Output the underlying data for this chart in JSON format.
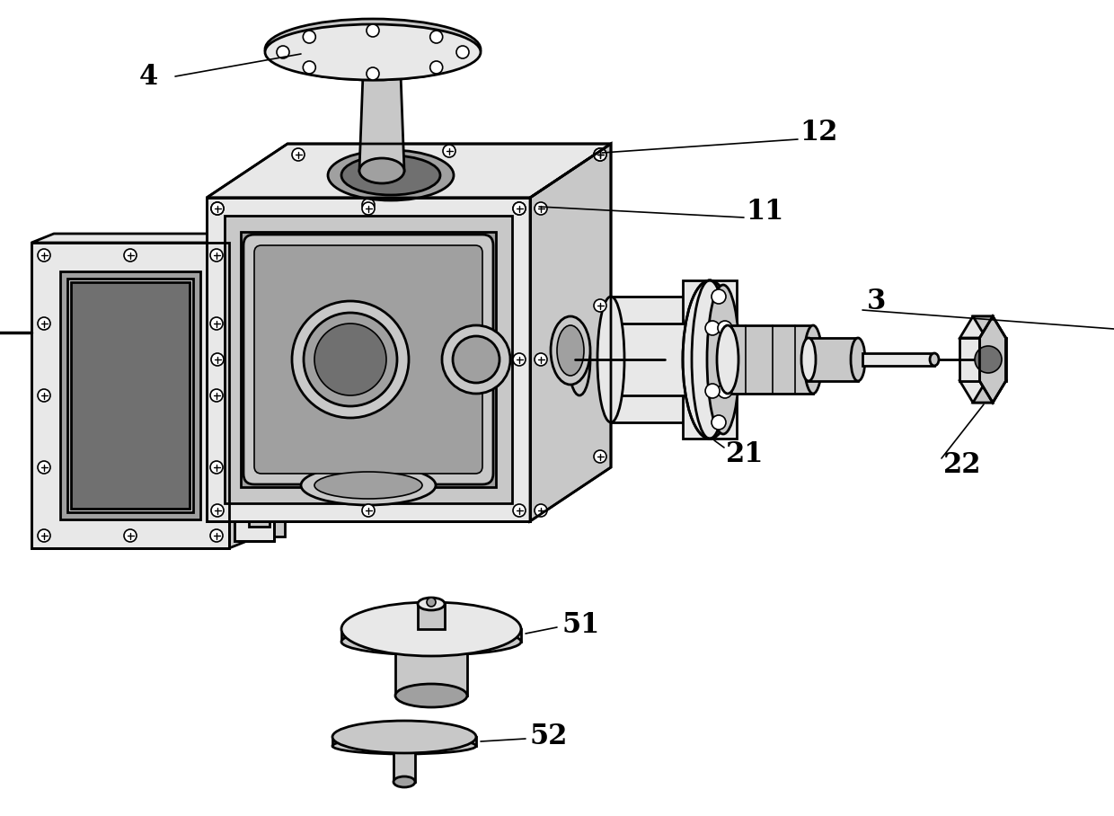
{
  "bg": "#ffffff",
  "lc": "#000000",
  "lw": 2.0,
  "thin_lw": 1.2,
  "gray_light": "#e8e8e8",
  "gray_mid": "#c8c8c8",
  "gray_dark": "#a0a0a0",
  "gray_darker": "#707070",
  "white": "#ffffff"
}
